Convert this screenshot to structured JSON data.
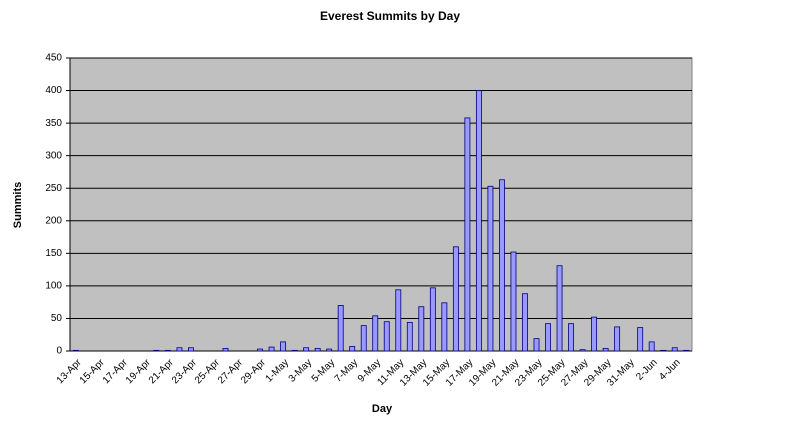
{
  "chart_data": {
    "type": "bar",
    "title": "Everest Summits by Day",
    "x_label": "Day",
    "y_label": "Summits",
    "categories": [
      "13-Apr",
      null,
      "15-Apr",
      null,
      "17-Apr",
      null,
      "19-Apr",
      null,
      "21-Apr",
      null,
      "23-Apr",
      null,
      "25-Apr",
      null,
      "27-Apr",
      null,
      "29-Apr",
      null,
      "1-May",
      null,
      "3-May",
      null,
      "5-May",
      null,
      "7-May",
      null,
      "9-May",
      null,
      "11-May",
      null,
      "13-May",
      null,
      "15-May",
      null,
      "17-May",
      null,
      "19-May",
      null,
      "21-May",
      null,
      "23-May",
      null,
      "25-May",
      null,
      "27-May",
      null,
      "29-May",
      null,
      "31-May",
      null,
      "2-Jun",
      null,
      "4-Jun",
      null
    ],
    "values": [
      1,
      0,
      0,
      0,
      0,
      0,
      0,
      1,
      1,
      5,
      5,
      0,
      0,
      4,
      0,
      0,
      3,
      6,
      14,
      1,
      5,
      4,
      3,
      70,
      7,
      39,
      54,
      45,
      94,
      44,
      68,
      97,
      74,
      160,
      358,
      400,
      253,
      263,
      152,
      88,
      19,
      42,
      131,
      42,
      2,
      52,
      4,
      37,
      0,
      36,
      14,
      1,
      5,
      1
    ],
    "color": "#9999ff",
    "ylim": [
      0,
      450
    ],
    "yticks": [
      0,
      50,
      100,
      150,
      200,
      250,
      300,
      350,
      400,
      450
    ],
    "grid": true
  }
}
